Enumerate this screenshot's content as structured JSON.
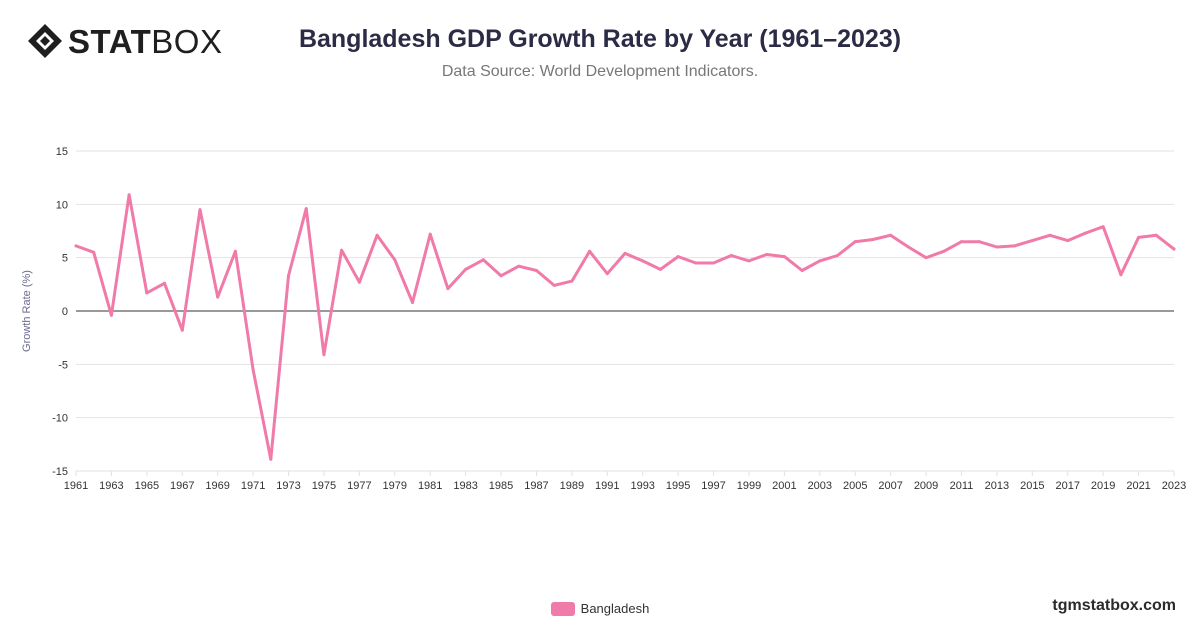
{
  "header": {
    "logo_bold": "STAT",
    "logo_light": "BOX",
    "title": "Bangladesh GDP Growth Rate by Year (1961–2023)",
    "subtitle": "Data Source: World Development Indicators."
  },
  "footer": {
    "site": "tgmstatbox.com"
  },
  "colors": {
    "line": "#f07aa8",
    "grid": "#e2e2e2",
    "zero_line": "#333333",
    "axis_label": "#6b6b8f"
  },
  "chart_data": {
    "type": "line",
    "ylabel": "Growth Rate (%)",
    "xlabel": "",
    "ylim": [
      -15,
      15
    ],
    "yticks": [
      15,
      10,
      5,
      0,
      -5,
      -10,
      -15
    ],
    "xlim": [
      1961,
      2023
    ],
    "xticks": [
      1961,
      1963,
      1965,
      1967,
      1969,
      1971,
      1973,
      1975,
      1977,
      1979,
      1981,
      1983,
      1985,
      1987,
      1989,
      1991,
      1993,
      1995,
      1997,
      1999,
      2001,
      2003,
      2005,
      2007,
      2009,
      2011,
      2013,
      2015,
      2017,
      2019,
      2021,
      2023
    ],
    "grid": true,
    "legend_position": "bottom-center",
    "x": [
      1961,
      1962,
      1963,
      1964,
      1965,
      1966,
      1967,
      1968,
      1969,
      1970,
      1971,
      1972,
      1973,
      1974,
      1975,
      1976,
      1977,
      1978,
      1979,
      1980,
      1981,
      1982,
      1983,
      1984,
      1985,
      1986,
      1987,
      1988,
      1989,
      1990,
      1991,
      1992,
      1993,
      1994,
      1995,
      1996,
      1997,
      1998,
      1999,
      2000,
      2001,
      2002,
      2003,
      2004,
      2005,
      2006,
      2007,
      2008,
      2009,
      2010,
      2011,
      2012,
      2013,
      2014,
      2015,
      2016,
      2017,
      2018,
      2019,
      2020,
      2021,
      2022,
      2023
    ],
    "series": [
      {
        "name": "Bangladesh",
        "values": [
          6.1,
          5.5,
          -0.4,
          10.9,
          1.7,
          2.6,
          -1.8,
          9.5,
          1.3,
          5.6,
          -5.5,
          -13.9,
          3.3,
          9.6,
          -4.1,
          5.7,
          2.7,
          7.1,
          4.8,
          0.8,
          7.2,
          2.1,
          3.9,
          4.8,
          3.3,
          4.2,
          3.8,
          2.4,
          2.8,
          5.6,
          3.5,
          5.4,
          4.7,
          3.9,
          5.1,
          4.5,
          4.5,
          5.2,
          4.7,
          5.3,
          5.1,
          3.8,
          4.7,
          5.2,
          6.5,
          6.7,
          7.1,
          6.0,
          5.0,
          5.6,
          6.5,
          6.5,
          6.0,
          6.1,
          6.6,
          7.1,
          6.6,
          7.3,
          7.9,
          3.4,
          6.9,
          7.1,
          5.8
        ]
      }
    ]
  }
}
